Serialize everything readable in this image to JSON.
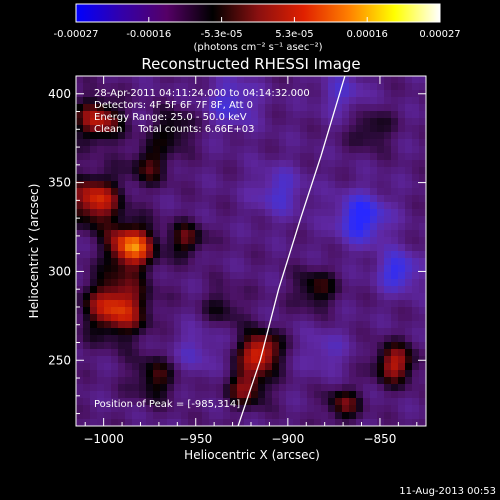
{
  "colorbar": {
    "tick_labels": [
      "-0.00027",
      "-0.00016",
      "-5.3e-05",
      "5.3e-05",
      "0.00016",
      "0.00027"
    ],
    "units_label": "(photons cm⁻² s⁻¹ asec⁻²)",
    "colors": [
      "#0000ff",
      "#3300aa",
      "#550066",
      "#000000",
      "#8a1010",
      "#e02000",
      "#ff8000",
      "#ffff00",
      "#ffffff"
    ]
  },
  "chart_data": {
    "type": "heatmap",
    "title": "Reconstructed RHESSI Image",
    "xlabel": "Heliocentric X (arcsec)",
    "ylabel": "Heliocentric Y (arcsec)",
    "xlim": [
      -1015,
      -825
    ],
    "ylim": [
      213,
      410
    ],
    "x_ticks": [
      -1000,
      -950,
      -900,
      -850
    ],
    "y_ticks": [
      250,
      300,
      350,
      400
    ],
    "x_tick_labels": [
      "−1000",
      "−950",
      "−900",
      "−850"
    ],
    "y_tick_labels": [
      "250",
      "300",
      "350",
      "400"
    ],
    "annotations": [
      "28-Apr-2011 04:11:24.000 to 04:14:32.000",
      "Detectors: 4F 5F 6F 7F 8F, Att 0",
      "Energy Range: 25.0 - 50.0 keV",
      "Clean     Total counts: 6.66E+03"
    ],
    "peak_label": "Position of Peak = [-985,314]",
    "peak": [
      -985,
      314
    ],
    "limb_curve": [
      [
        -927,
        213
      ],
      [
        -915,
        250
      ],
      [
        -905,
        290
      ],
      [
        -893,
        330
      ],
      [
        -882,
        365
      ],
      [
        -869,
        410
      ]
    ],
    "sources": [
      {
        "x": -985,
        "y": 314,
        "amp": 1.0,
        "w": 9
      },
      {
        "x": -993,
        "y": 280,
        "amp": 0.85,
        "w": 12
      },
      {
        "x": -1005,
        "y": 340,
        "amp": 0.8,
        "w": 10
      },
      {
        "x": -1003,
        "y": 385,
        "amp": 0.7,
        "w": 9
      },
      {
        "x": -975,
        "y": 360,
        "amp": 0.45,
        "w": 8
      },
      {
        "x": -915,
        "y": 255,
        "amp": 0.85,
        "w": 8
      },
      {
        "x": -922,
        "y": 235,
        "amp": 0.6,
        "w": 8
      },
      {
        "x": -842,
        "y": 248,
        "amp": 0.7,
        "w": 8
      },
      {
        "x": -955,
        "y": 318,
        "amp": 0.5,
        "w": 7
      },
      {
        "x": -972,
        "y": 240,
        "amp": 0.45,
        "w": 9
      },
      {
        "x": -962,
        "y": 380,
        "amp": 0.4,
        "w": 8
      },
      {
        "x": -885,
        "y": 290,
        "amp": 0.45,
        "w": 8
      },
      {
        "x": -870,
        "y": 225,
        "amp": 0.5,
        "w": 7
      },
      {
        "x": -855,
        "y": 380,
        "amp": 0.35,
        "w": 8
      },
      {
        "x": -935,
        "y": 280,
        "amp": 0.3,
        "w": 8
      },
      {
        "x": -860,
        "y": 330,
        "amp": -0.7,
        "w": 10
      },
      {
        "x": -840,
        "y": 300,
        "amp": -0.6,
        "w": 8
      },
      {
        "x": -930,
        "y": 395,
        "amp": -0.45,
        "w": 10
      },
      {
        "x": -905,
        "y": 345,
        "amp": -0.4,
        "w": 10
      },
      {
        "x": -950,
        "y": 255,
        "amp": -0.3,
        "w": 10
      },
      {
        "x": -880,
        "y": 255,
        "amp": -0.3,
        "w": 9
      },
      {
        "x": -870,
        "y": 400,
        "amp": -0.35,
        "w": 9
      }
    ]
  },
  "footer": {
    "date": "11-Aug-2013 00:53"
  }
}
